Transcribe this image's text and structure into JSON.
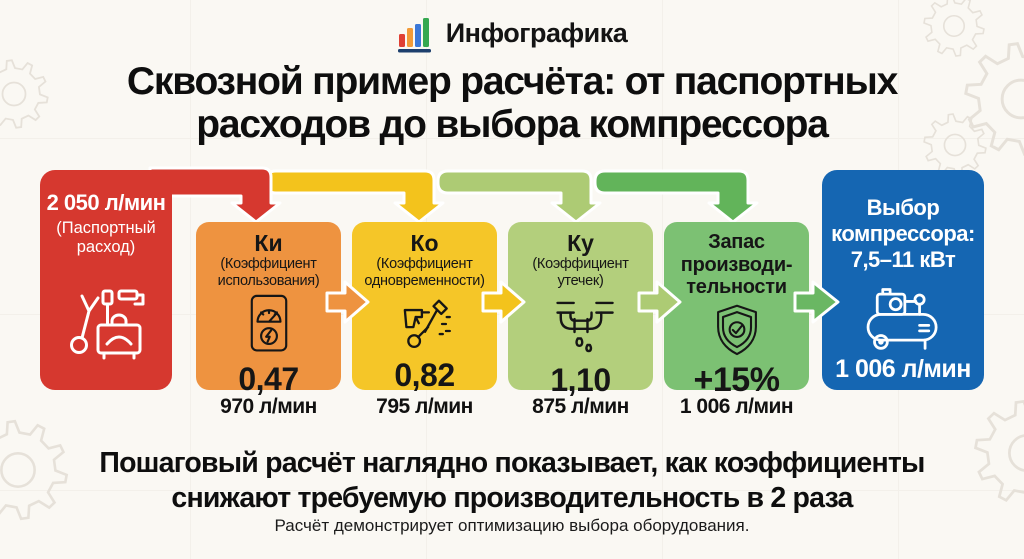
{
  "colors": {
    "background": "#faf8f3",
    "red": "#d6382f",
    "orange": "#ee9340",
    "yellow": "#f5c628",
    "light_green": "#b3cf7c",
    "green": "#7cc173",
    "blue": "#1566b2",
    "bar_gold": "#f3c31c",
    "bar_light_green": "#adcb74",
    "bar_green": "#62b45a",
    "arrow_green": "#6ab763",
    "text_dark": "#121212",
    "text_light": "#ffffff"
  },
  "logo": {
    "text": "Инфографика",
    "bar1": "#e04034",
    "bar2": "#f29b38",
    "bar3": "#3b78d8",
    "bar4": "#35a850",
    "baseline": "#1d3f6d"
  },
  "title": {
    "line1": "Сквозной пример расчёта: от паспортных",
    "line2": "расходов до выбора компрессора"
  },
  "source": {
    "value": "2 050 л/мин",
    "label_line1": "(Паспортный",
    "label_line2": "расход)",
    "icon": "tools-icon"
  },
  "steps": [
    {
      "title": "Ки",
      "subtitle_line1": "(Коэффициент",
      "subtitle_line2": "использования)",
      "value": "0,47",
      "result": "970 л/мин",
      "icon": "power-meter-icon"
    },
    {
      "title": "Ко",
      "subtitle_line1": "(Коэффициент",
      "subtitle_line2": "одновременности)",
      "value": "0,82",
      "result": "795 л/мин",
      "icon": "air-tools-icon"
    },
    {
      "title": "Ку",
      "subtitle_line1": "(Коэффициент",
      "subtitle_line2": "утечек)",
      "value": "1,10",
      "result": "875 л/мин",
      "icon": "pipe-leak-icon"
    },
    {
      "title_line1": "Запас",
      "title_line2": "производи-",
      "title_line3": "тельности",
      "value": "+15%",
      "result": "1 006 л/мин",
      "icon": "shield-check-icon"
    }
  ],
  "target": {
    "title_line1": "Выбор",
    "title_line2": "компрессора:",
    "title_line3": "7,5–11 кВт",
    "value": "1 006 л/мин",
    "icon": "compressor-icon"
  },
  "footer": {
    "headline_line1": "Пошаговый расчёт наглядно показывает, как коэффициенты",
    "headline_line2": "снижают требуемую производительность в 2 раза",
    "subtext": "Расчёт демонстрирует оптимизацию выбора оборудования."
  }
}
